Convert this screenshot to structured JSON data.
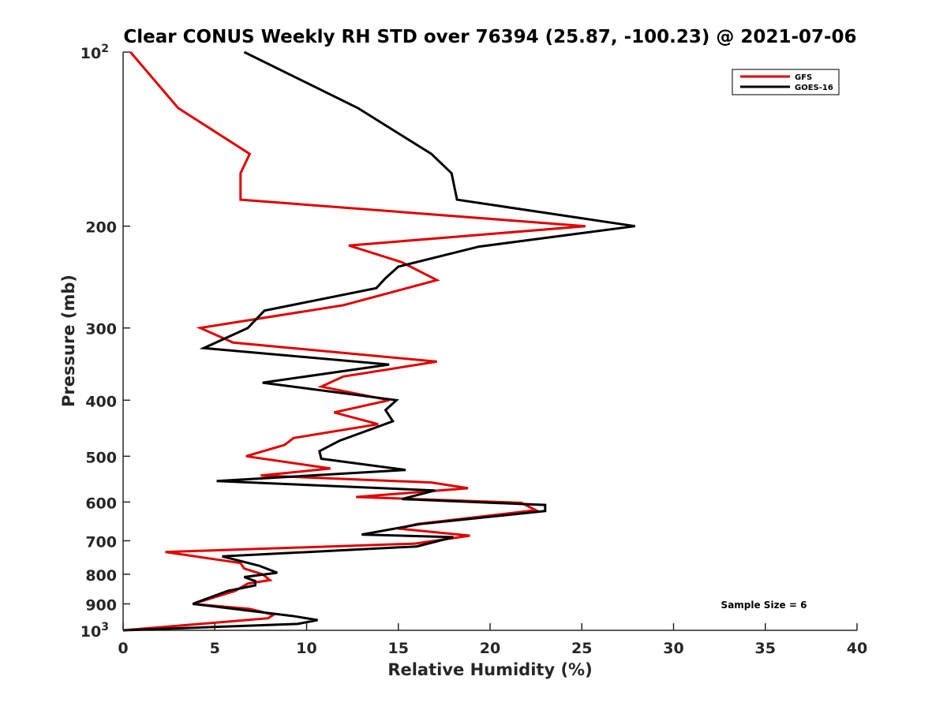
{
  "chart_data": {
    "type": "line",
    "title": "Clear CONUS Weekly RH STD over 76394 (25.87, -100.23) @ 2021-07-06",
    "xlabel": "Relative Humidity (%)",
    "ylabel": "Pressure (mb)",
    "xlim": [
      0,
      40
    ],
    "ylim": [
      100,
      1000
    ],
    "y_scale": "log",
    "y_reversed": true,
    "x_ticks": [
      {
        "value": 0,
        "label": "0"
      },
      {
        "value": 5,
        "label": "5"
      },
      {
        "value": 10,
        "label": "10"
      },
      {
        "value": 15,
        "label": "15"
      },
      {
        "value": 20,
        "label": "20"
      },
      {
        "value": 25,
        "label": "25"
      },
      {
        "value": 30,
        "label": "30"
      },
      {
        "value": 35,
        "label": "35"
      },
      {
        "value": 40,
        "label": "40"
      }
    ],
    "y_ticks": [
      {
        "value": 100,
        "base": "10",
        "exp": "2"
      },
      {
        "value": 200,
        "base": "200",
        "exp": ""
      },
      {
        "value": 300,
        "base": "300",
        "exp": ""
      },
      {
        "value": 400,
        "base": "400",
        "exp": ""
      },
      {
        "value": 500,
        "base": "500",
        "exp": ""
      },
      {
        "value": 600,
        "base": "600",
        "exp": ""
      },
      {
        "value": 700,
        "base": "700",
        "exp": ""
      },
      {
        "value": 800,
        "base": "800",
        "exp": ""
      },
      {
        "value": 900,
        "base": "900",
        "exp": ""
      },
      {
        "value": 1000,
        "base": "10",
        "exp": "3"
      }
    ],
    "grid": false,
    "legend_position": "top-right",
    "series": [
      {
        "name": "GFS",
        "color": "#e00000",
        "points": [
          [
            0.4,
            100
          ],
          [
            3.0,
            125
          ],
          [
            6.9,
            150
          ],
          [
            6.4,
            162
          ],
          [
            6.4,
            180
          ],
          [
            25.2,
            200
          ],
          [
            12.3,
            216
          ],
          [
            15.2,
            231
          ],
          [
            17.1,
            248
          ],
          [
            12.0,
            274
          ],
          [
            4.2,
            300
          ],
          [
            6.0,
            318
          ],
          [
            17.1,
            343
          ],
          [
            12.0,
            364
          ],
          [
            10.8,
            379
          ],
          [
            14.5,
            400
          ],
          [
            11.5,
            420
          ],
          [
            13.9,
            440
          ],
          [
            9.3,
            465
          ],
          [
            8.8,
            478
          ],
          [
            6.7,
            500
          ],
          [
            11.3,
            525
          ],
          [
            7.5,
            540
          ],
          [
            16.8,
            555
          ],
          [
            18.8,
            568
          ],
          [
            12.7,
            588
          ],
          [
            21.7,
            602
          ],
          [
            22.5,
            620
          ],
          [
            16.0,
            655
          ],
          [
            15.0,
            667
          ],
          [
            18.9,
            686
          ],
          [
            15.9,
            708
          ],
          [
            2.3,
            732
          ],
          [
            6.4,
            765
          ],
          [
            6.6,
            782
          ],
          [
            7.6,
            800
          ],
          [
            8.0,
            819
          ],
          [
            6.8,
            830
          ],
          [
            6.1,
            855
          ],
          [
            3.8,
            900
          ],
          [
            6.9,
            918
          ],
          [
            8.2,
            940
          ],
          [
            7.9,
            953
          ],
          [
            0.0,
            1000
          ]
        ]
      },
      {
        "name": "GOES-16",
        "color": "#000000",
        "points": [
          [
            6.6,
            100
          ],
          [
            12.8,
            125
          ],
          [
            16.8,
            150
          ],
          [
            17.9,
            162
          ],
          [
            18.2,
            180
          ],
          [
            27.9,
            200
          ],
          [
            19.4,
            217
          ],
          [
            15.0,
            235
          ],
          [
            14.3,
            246
          ],
          [
            13.8,
            256
          ],
          [
            7.7,
            280
          ],
          [
            6.8,
            300
          ],
          [
            4.4,
            325
          ],
          [
            14.5,
            347
          ],
          [
            7.6,
            373
          ],
          [
            14.9,
            400
          ],
          [
            14.3,
            416
          ],
          [
            14.7,
            435
          ],
          [
            11.8,
            470
          ],
          [
            10.7,
            490
          ],
          [
            10.8,
            505
          ],
          [
            15.4,
            528
          ],
          [
            5.1,
            552
          ],
          [
            17.0,
            573
          ],
          [
            15.2,
            593
          ],
          [
            23.0,
            607
          ],
          [
            23.0,
            622
          ],
          [
            16.2,
            655
          ],
          [
            13.0,
            683
          ],
          [
            18.0,
            690
          ],
          [
            16.0,
            716
          ],
          [
            5.4,
            745
          ],
          [
            7.4,
            773
          ],
          [
            8.4,
            795
          ],
          [
            6.6,
            809
          ],
          [
            7.2,
            822
          ],
          [
            7.2,
            836
          ],
          [
            5.7,
            855
          ],
          [
            4.2,
            890
          ],
          [
            3.8,
            900
          ],
          [
            9.2,
            944
          ],
          [
            10.6,
            960
          ],
          [
            9.5,
            975
          ],
          [
            0.0,
            1000
          ]
        ]
      }
    ],
    "annotation": "Sample Size = 6"
  }
}
